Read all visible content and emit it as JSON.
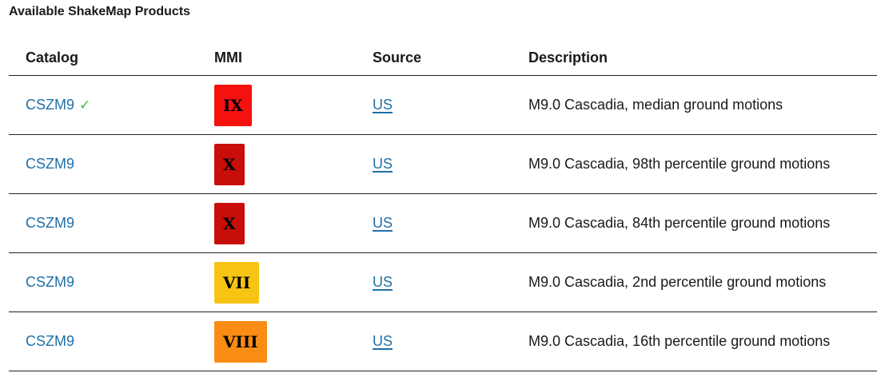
{
  "title": "Available ShakeMap Products",
  "headers": {
    "catalog": "Catalog",
    "mmi": "MMI",
    "source": "Source",
    "description": "Description"
  },
  "rows": [
    {
      "catalog": "CSZM9",
      "preferred": true,
      "check": "✓",
      "mmi": "IX",
      "mmi_color": "#f4110e",
      "source": "US",
      "description": "M9.0 Cascadia, median ground motions"
    },
    {
      "catalog": "CSZM9",
      "preferred": false,
      "mmi": "X",
      "mmi_color": "#c70e0a",
      "source": "US",
      "description": "M9.0 Cascadia, 98th percentile ground motions"
    },
    {
      "catalog": "CSZM9",
      "preferred": false,
      "mmi": "X",
      "mmi_color": "#c70e0a",
      "source": "US",
      "description": "M9.0 Cascadia, 84th percentile ground motions"
    },
    {
      "catalog": "CSZM9",
      "preferred": false,
      "mmi": "VII",
      "mmi_color": "#f8c414",
      "source": "US",
      "description": "M9.0 Cascadia, 2nd percentile ground motions"
    },
    {
      "catalog": "CSZM9",
      "preferred": false,
      "mmi": "VIII",
      "mmi_color": "#f98c14",
      "source": "US",
      "description": "M9.0 Cascadia, 16th percentile ground motions"
    }
  ]
}
